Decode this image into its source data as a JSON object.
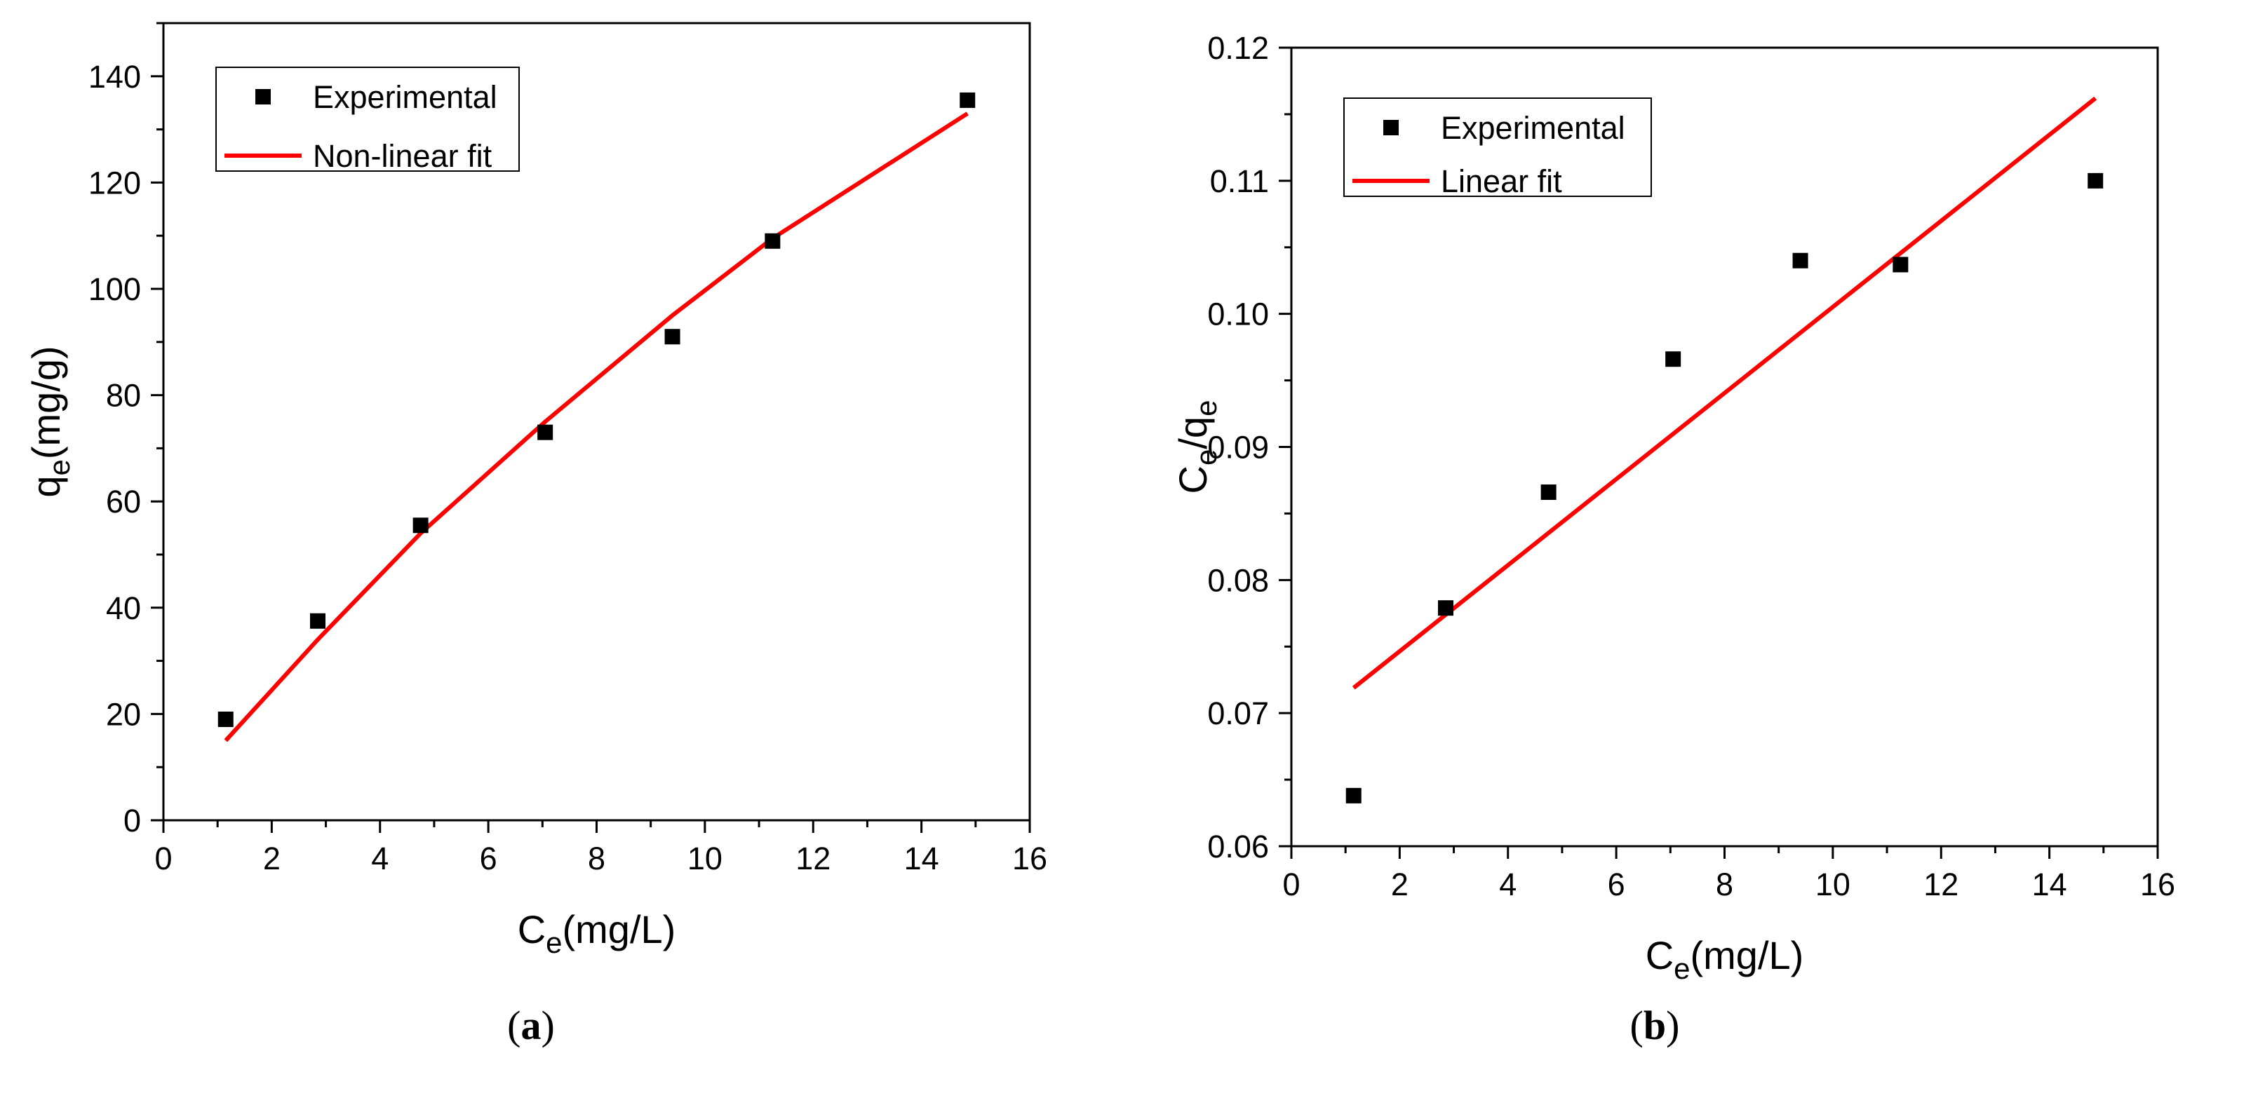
{
  "chart_data": [
    {
      "id": "a",
      "type": "scatter",
      "panel_label": "a",
      "xlabel": {
        "main": "C",
        "sub": "e",
        "unit": "(mg/L)"
      },
      "ylabel": {
        "main": "q",
        "sub": "e",
        "unit": "(mg/g)"
      },
      "xlim": [
        0,
        16
      ],
      "ylim": [
        0,
        150
      ],
      "xticks": [
        0,
        2,
        4,
        6,
        8,
        10,
        12,
        14,
        16
      ],
      "yticks": [
        0,
        20,
        40,
        60,
        80,
        100,
        120,
        140
      ],
      "xtick_labels": [
        "0",
        "2",
        "4",
        "6",
        "8",
        "10",
        "12",
        "14",
        "16"
      ],
      "ytick_labels": [
        "0",
        "20",
        "40",
        "60",
        "80",
        "100",
        "120",
        "140"
      ],
      "legend_position": "top-left",
      "series": [
        {
          "name": "Experimental",
          "kind": "markers",
          "color": "#000000",
          "x": [
            1.15,
            2.85,
            4.75,
            7.05,
            9.4,
            11.25,
            14.85
          ],
          "y": [
            19,
            37.5,
            55.5,
            73,
            91,
            109,
            135.5
          ]
        },
        {
          "name": "Non-linear fit",
          "kind": "line",
          "color": "#ff0000",
          "x": [
            1.15,
            2.85,
            4.75,
            7.05,
            9.4,
            11.25,
            14.85
          ],
          "y": [
            15,
            34,
            54,
            75,
            95,
            109.5,
            133
          ]
        }
      ]
    },
    {
      "id": "b",
      "type": "scatter",
      "panel_label": "b",
      "xlabel": {
        "main": "C",
        "sub": "e",
        "unit": "(mg/L)"
      },
      "ylabel": {
        "main": "C",
        "sub": "e",
        "mid": "/q",
        "sub2": "e"
      },
      "xlim": [
        0,
        16
      ],
      "ylim": [
        0.06,
        0.12
      ],
      "xticks": [
        0,
        2,
        4,
        6,
        8,
        10,
        12,
        14,
        16
      ],
      "yticks": [
        0.06,
        0.07,
        0.08,
        0.09,
        0.1,
        0.11,
        0.12
      ],
      "xtick_labels": [
        "0",
        "2",
        "4",
        "6",
        "8",
        "10",
        "12",
        "14",
        "16"
      ],
      "ytick_labels": [
        "0.06",
        "0.07",
        "0.08",
        "0.09",
        "0.10",
        "0.11",
        "0.12"
      ],
      "legend_position": "top-left",
      "series": [
        {
          "name": "Experimental",
          "kind": "markers",
          "color": "#000000",
          "x": [
            1.15,
            2.85,
            4.75,
            7.05,
            9.4,
            11.25,
            14.85
          ],
          "y": [
            0.0638,
            0.0779,
            0.0866,
            0.0966,
            0.104,
            0.1037,
            0.11
          ]
        },
        {
          "name": "Linear fit",
          "kind": "line",
          "color": "#ff0000",
          "x": [
            1.15,
            14.85
          ],
          "y": [
            0.0719,
            0.1162
          ]
        }
      ]
    }
  ]
}
